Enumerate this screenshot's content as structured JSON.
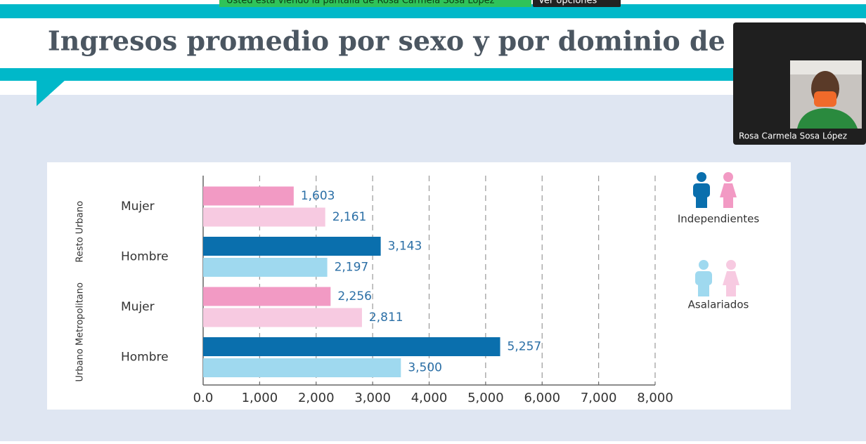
{
  "banner": {
    "text": "Usted está viendo la pantalla de Rosa Carmela Sosa López",
    "button": "Ver opciones"
  },
  "participant": {
    "name": "Rosa Carmela Sosa López"
  },
  "chart_data": {
    "type": "bar",
    "orientation": "horizontal",
    "title": "Ingresos promedio por sexo y por dominio de estudio",
    "categories": [
      "Mujer",
      "Hombre",
      "Mujer",
      "Hombre"
    ],
    "group_labels": [
      "Resto Urbano",
      "Urbano Metropolitano"
    ],
    "series": [
      {
        "name": "Independientes",
        "colors": [
          "#f29ac4",
          "#0a6fad",
          "#f29ac4",
          "#0a6fad"
        ],
        "values": [
          1603,
          3143,
          2256,
          5257
        ],
        "value_labels": [
          "1,603",
          "3,143",
          "2,256",
          "5,257"
        ]
      },
      {
        "name": "Asalariados",
        "colors": [
          "#f7cae1",
          "#9fd9ef",
          "#f7cae1",
          "#9fd9ef"
        ],
        "values": [
          2161,
          2197,
          2811,
          3500
        ],
        "value_labels": [
          "2,161",
          "2,197",
          "2,811",
          "3,500"
        ]
      }
    ],
    "xlim": [
      0,
      8000
    ],
    "xticks": [
      {
        "value": 0,
        "label": "0.0"
      },
      {
        "value": 1000,
        "label": "1,000"
      },
      {
        "value": 2000,
        "label": "2,000"
      },
      {
        "value": 3000,
        "label": "3,000"
      },
      {
        "value": 4000,
        "label": "4,000"
      },
      {
        "value": 5000,
        "label": "5,000"
      },
      {
        "value": 6000,
        "label": "6,000"
      },
      {
        "value": 7000,
        "label": "7,000"
      },
      {
        "value": 8000,
        "label": "8,000"
      }
    ],
    "grid": true
  }
}
